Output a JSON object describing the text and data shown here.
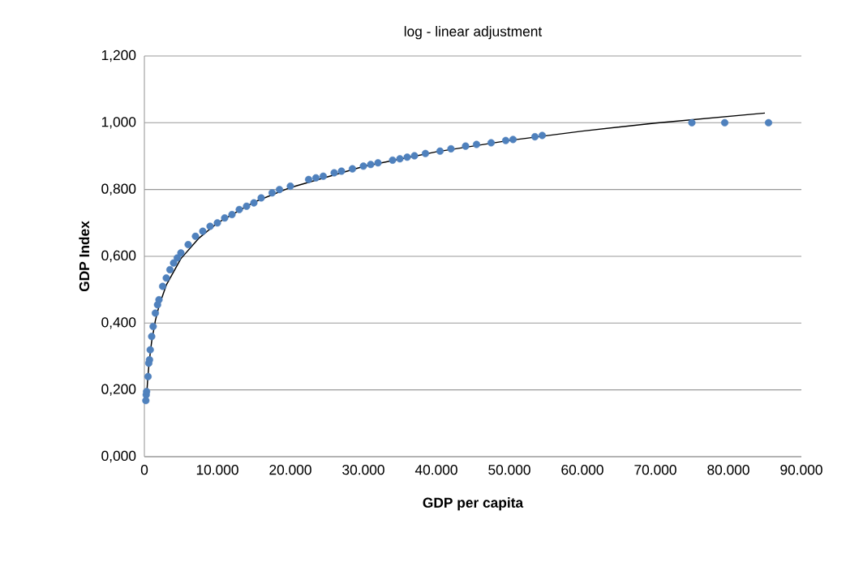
{
  "chart_data": {
    "type": "scatter",
    "title": "log - linear adjustment",
    "xlabel": "GDP per capita",
    "ylabel": "GDP  Index",
    "xlim": [
      0,
      90000
    ],
    "ylim": [
      0,
      1.2
    ],
    "xticks": [
      {
        "value": 0,
        "label": "0"
      },
      {
        "value": 10000,
        "label": "10.000"
      },
      {
        "value": 20000,
        "label": "20.000"
      },
      {
        "value": 30000,
        "label": "30.000"
      },
      {
        "value": 40000,
        "label": "40.000"
      },
      {
        "value": 50000,
        "label": "50.000"
      },
      {
        "value": 60000,
        "label": "60.000"
      },
      {
        "value": 70000,
        "label": "70.000"
      },
      {
        "value": 80000,
        "label": "80.000"
      },
      {
        "value": 90000,
        "label": "90.000"
      }
    ],
    "yticks": [
      {
        "value": 0,
        "label": "0,000"
      },
      {
        "value": 0.2,
        "label": "0,200"
      },
      {
        "value": 0.4,
        "label": "0,400"
      },
      {
        "value": 0.6,
        "label": "0,600"
      },
      {
        "value": 0.8,
        "label": "0,800"
      },
      {
        "value": 1.0,
        "label": "1,000"
      },
      {
        "value": 1.2,
        "label": "1,200"
      }
    ],
    "grid": "y",
    "marker": "circle",
    "series": [
      {
        "color": "#4f81bd",
        "x": [
          200,
          250,
          300,
          500,
          600,
          700,
          800,
          1000,
          1200,
          1500,
          1800,
          2000,
          2500,
          3000,
          3500,
          4000,
          4500,
          5000,
          6000,
          7000,
          8000,
          9000,
          10000,
          11000,
          12000,
          13000,
          14000,
          15000,
          16000,
          17500,
          18500,
          20000,
          22500,
          23500,
          24500,
          26000,
          27000,
          28500,
          30000,
          31000,
          32000,
          34000,
          35000,
          36000,
          37000,
          38500,
          40500,
          42000,
          44000,
          45500,
          47500,
          49500,
          50500,
          53500,
          54500,
          75000,
          79500,
          85500
        ],
        "values": [
          0.168,
          0.185,
          0.195,
          0.24,
          0.28,
          0.29,
          0.32,
          0.36,
          0.39,
          0.43,
          0.455,
          0.47,
          0.51,
          0.535,
          0.56,
          0.58,
          0.595,
          0.61,
          0.635,
          0.66,
          0.675,
          0.69,
          0.7,
          0.715,
          0.725,
          0.74,
          0.75,
          0.76,
          0.775,
          0.79,
          0.8,
          0.81,
          0.83,
          0.835,
          0.84,
          0.85,
          0.855,
          0.862,
          0.87,
          0.875,
          0.88,
          0.888,
          0.892,
          0.897,
          0.901,
          0.908,
          0.915,
          0.922,
          0.93,
          0.935,
          0.94,
          0.947,
          0.95,
          0.958,
          0.962,
          1.0,
          1.0,
          1.0
        ]
      },
      {
        "type": "line",
        "marker": "none",
        "color": "#000000",
        "x": [
          300,
          450,
          600,
          800,
          1000,
          1500,
          2000,
          3000,
          5000,
          7500,
          10000,
          15000,
          20000,
          30000,
          40000,
          50000,
          60000,
          70000,
          85000
        ],
        "values": [
          0.18,
          0.23,
          0.27,
          0.31,
          0.345,
          0.407,
          0.451,
          0.514,
          0.593,
          0.655,
          0.7,
          0.762,
          0.806,
          0.869,
          0.913,
          0.947,
          0.975,
          0.999,
          1.029
        ]
      }
    ]
  }
}
